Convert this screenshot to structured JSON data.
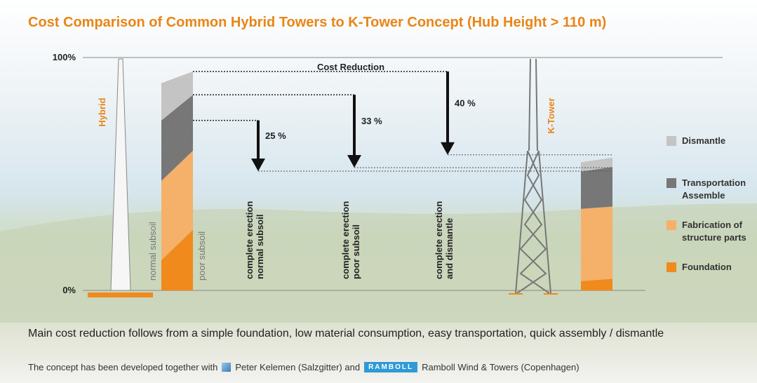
{
  "title": "Cost Comparison of Common Hybrid Towers to K-Tower Concept (Hub Height > 110 m)",
  "chart_data": {
    "type": "sloped-stack",
    "ylim": [
      0,
      100
    ],
    "yticks": [
      {
        "value": 0,
        "label": "0%"
      },
      {
        "value": 100,
        "label": "100%"
      }
    ],
    "tower_labels": [
      "Hybrid",
      "K-Tower"
    ],
    "hybrid_edges": [
      "normal subsoil",
      "poor subsoil"
    ],
    "reduction_title": "Cost Reduction",
    "series": [
      {
        "name": "Foundation",
        "color": "#f08a1c",
        "hybrid": [
          13,
          26
        ],
        "ktower": [
          4,
          5
        ]
      },
      {
        "name": "Fabrication of structure parts",
        "color": "#f5b06a",
        "hybrid": [
          34,
          34
        ],
        "ktower": [
          31,
          31
        ]
      },
      {
        "name": "Transportation Assemble",
        "color": "#777777",
        "hybrid": [
          26,
          24
        ],
        "ktower": [
          16,
          17
        ]
      },
      {
        "name": "Dismantle",
        "color": "#c4c4c4",
        "hybrid": [
          16,
          10
        ],
        "ktower": [
          4,
          4
        ]
      }
    ],
    "reductions": [
      {
        "value": 25,
        "label": "25 %",
        "text": [
          "complete erection",
          "normal subsoil"
        ]
      },
      {
        "value": 33,
        "label": "33 %",
        "text": [
          "complete erection",
          "poor subsoil"
        ]
      },
      {
        "value": 40,
        "label": "40 %",
        "text": [
          "complete erection",
          "and dismantle"
        ]
      }
    ]
  },
  "footer": {
    "main": "Main cost reduction follows from a simple foundation, low material consumption, easy transportation, quick assembly / dismantle",
    "credit_intro": "The concept has been developed together with",
    "partner1": "Peter Kelemen (Salzgitter) and",
    "logo": "RAMBOLL",
    "partner2": "Ramboll Wind & Towers (Copenhagen)"
  }
}
